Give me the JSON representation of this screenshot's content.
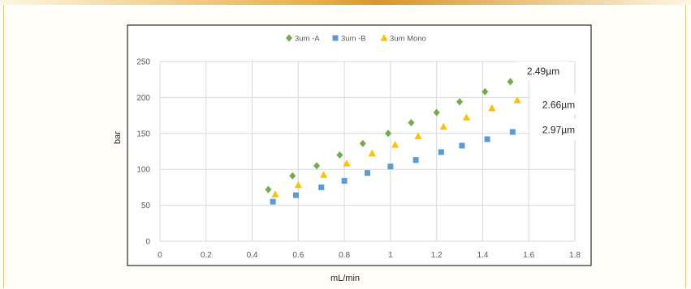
{
  "chart_data": {
    "type": "scatter",
    "xlabel": "mL/min",
    "ylabel": "bar",
    "xlim": [
      0,
      1.8
    ],
    "ylim": [
      0,
      250
    ],
    "xticks": [
      "0",
      "0.2",
      "0.4",
      "0.6",
      "0.8",
      "1",
      "1.2",
      "1.4",
      "1.6",
      "1.8"
    ],
    "yticks": [
      "0",
      "50",
      "100",
      "150",
      "200",
      "250"
    ],
    "grid": true,
    "legend_position": "top",
    "series": [
      {
        "name": "3um -A",
        "marker": "diamond",
        "color": "#70ad47",
        "points": [
          [
            0.47,
            72
          ],
          [
            0.575,
            91
          ],
          [
            0.68,
            105
          ],
          [
            0.78,
            120
          ],
          [
            0.88,
            136
          ],
          [
            0.99,
            150
          ],
          [
            1.09,
            165
          ],
          [
            1.2,
            179
          ],
          [
            1.3,
            194
          ],
          [
            1.41,
            208
          ],
          [
            1.52,
            222
          ]
        ]
      },
      {
        "name": "3um -B",
        "marker": "square",
        "color": "#5b9bd5",
        "points": [
          [
            0.49,
            55
          ],
          [
            0.59,
            64
          ],
          [
            0.7,
            75
          ],
          [
            0.8,
            84
          ],
          [
            0.9,
            95
          ],
          [
            1.0,
            104
          ],
          [
            1.11,
            113
          ],
          [
            1.22,
            124
          ],
          [
            1.31,
            133
          ],
          [
            1.42,
            142
          ],
          [
            1.53,
            152
          ]
        ]
      },
      {
        "name": "3um Mono",
        "marker": "triangle",
        "color": "#ffc000",
        "points": [
          [
            0.5,
            65
          ],
          [
            0.6,
            78
          ],
          [
            0.71,
            92
          ],
          [
            0.81,
            108
          ],
          [
            0.92,
            122
          ],
          [
            1.02,
            134
          ],
          [
            1.12,
            146
          ],
          [
            1.23,
            159
          ],
          [
            1.33,
            172
          ],
          [
            1.44,
            185
          ],
          [
            1.55,
            196
          ]
        ]
      }
    ],
    "annotations": [
      "2.49µm",
      "2.66µm",
      "2.97µm"
    ]
  }
}
